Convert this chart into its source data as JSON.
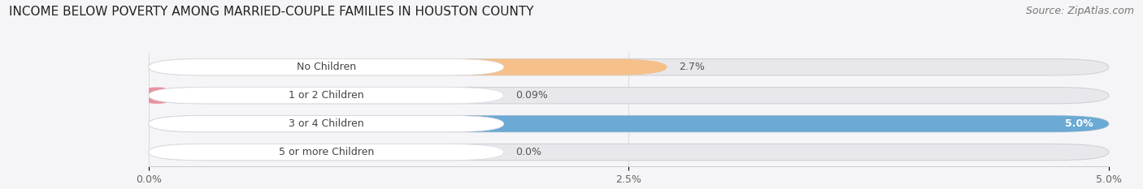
{
  "title": "INCOME BELOW POVERTY AMONG MARRIED-COUPLE FAMILIES IN HOUSTON COUNTY",
  "source": "Source: ZipAtlas.com",
  "categories": [
    "No Children",
    "1 or 2 Children",
    "3 or 4 Children",
    "5 or more Children"
  ],
  "values": [
    2.7,
    0.09,
    5.0,
    0.0
  ],
  "value_labels": [
    "2.7%",
    "0.09%",
    "5.0%",
    "0.0%"
  ],
  "bar_colors": [
    "#f5c08a",
    "#e8939e",
    "#6aaad4",
    "#c4b5d8"
  ],
  "bar_bg_color": "#e8e8ec",
  "label_bg_color": "#ffffff",
  "xlim": [
    0,
    5.0
  ],
  "xticks": [
    0.0,
    2.5,
    5.0
  ],
  "xticklabels": [
    "0.0%",
    "2.5%",
    "5.0%"
  ],
  "title_fontsize": 11,
  "source_fontsize": 9,
  "label_fontsize": 9,
  "value_fontsize": 9,
  "bar_height": 0.58,
  "background_color": "#f5f5f7",
  "label_text_color": "#444444",
  "value_text_color_inside": "#ffffff",
  "value_text_color_outside": "#555555"
}
